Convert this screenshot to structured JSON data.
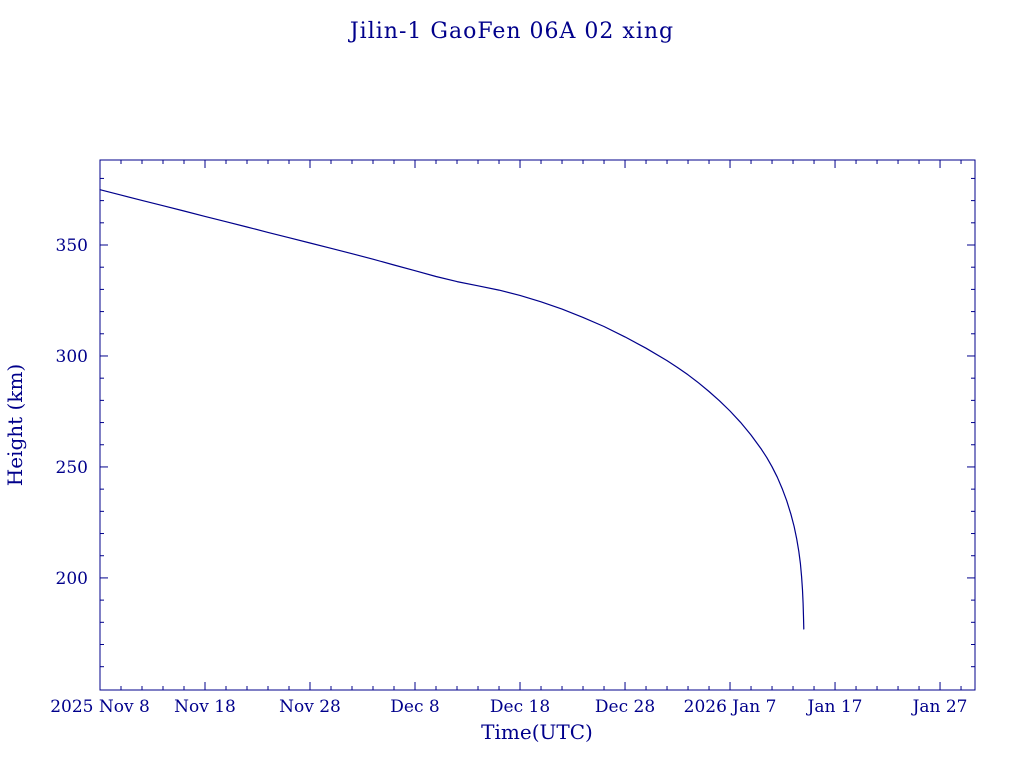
{
  "page": {
    "background": "#ffffff"
  },
  "chart_data": {
    "type": "line",
    "title": "Jilin-1 GaoFen 06A 02 xing",
    "xlabel": "Time(UTC)",
    "ylabel": "Height (km)",
    "line_color": "#00008b",
    "text_color": "#00008b",
    "x_unit": "days since 2025 Nov 8",
    "xlim_days": [
      0,
      83.33
    ],
    "ylim": [
      149.5,
      388.3
    ],
    "grid": false,
    "legend": "none",
    "x_major_ticks": [
      {
        "day": 0,
        "label": "2025 Nov 8"
      },
      {
        "day": 10,
        "label": "Nov 18"
      },
      {
        "day": 20,
        "label": "Nov 28"
      },
      {
        "day": 30,
        "label": "Dec 8"
      },
      {
        "day": 40,
        "label": "Dec 18"
      },
      {
        "day": 50,
        "label": "Dec 28"
      },
      {
        "day": 60,
        "label": "2026 Jan 7"
      },
      {
        "day": 70,
        "label": "Jan 17"
      },
      {
        "day": 80,
        "label": "Jan 27"
      }
    ],
    "x_minor_step_days": 2,
    "y_major_ticks": [
      200,
      250,
      300,
      350
    ],
    "y_minor_step": 10,
    "series": [
      {
        "name": "orbital-height",
        "points": [
          [
            0,
            374.9
          ],
          [
            2,
            372.5
          ],
          [
            4,
            370.1
          ],
          [
            6,
            367.7
          ],
          [
            8,
            365.3
          ],
          [
            10,
            362.9
          ],
          [
            12,
            360.5
          ],
          [
            14,
            358.1
          ],
          [
            16,
            355.7
          ],
          [
            18,
            353.3
          ],
          [
            20,
            350.9
          ],
          [
            22,
            348.5
          ],
          [
            24,
            346.1
          ],
          [
            26,
            343.6
          ],
          [
            28,
            341.0
          ],
          [
            30,
            338.4
          ],
          [
            32,
            335.8
          ],
          [
            34,
            333.5
          ],
          [
            36,
            331.6
          ],
          [
            38,
            329.7
          ],
          [
            40,
            327.3
          ],
          [
            42,
            324.4
          ],
          [
            44,
            321.1
          ],
          [
            46,
            317.4
          ],
          [
            48,
            313.3
          ],
          [
            50,
            308.6
          ],
          [
            52,
            303.5
          ],
          [
            54,
            297.9
          ],
          [
            55,
            294.8
          ],
          [
            56,
            291.5
          ],
          [
            57,
            287.9
          ],
          [
            58,
            284.0
          ],
          [
            59,
            279.8
          ],
          [
            60,
            275.2
          ],
          [
            61,
            270.1
          ],
          [
            62,
            264.4
          ],
          [
            63,
            257.9
          ],
          [
            63.5,
            254.2
          ],
          [
            64,
            250.1
          ],
          [
            64.5,
            245.4
          ],
          [
            65,
            239.9
          ],
          [
            65.4,
            234.8
          ],
          [
            65.8,
            228.7
          ],
          [
            66.1,
            223.2
          ],
          [
            66.35,
            217.6
          ],
          [
            66.55,
            212.0
          ],
          [
            66.7,
            206.5
          ],
          [
            66.82,
            200.5
          ],
          [
            66.9,
            194.5
          ],
          [
            66.96,
            188.5
          ],
          [
            67.0,
            182.5
          ],
          [
            67.03,
            177.0
          ]
        ]
      }
    ]
  }
}
